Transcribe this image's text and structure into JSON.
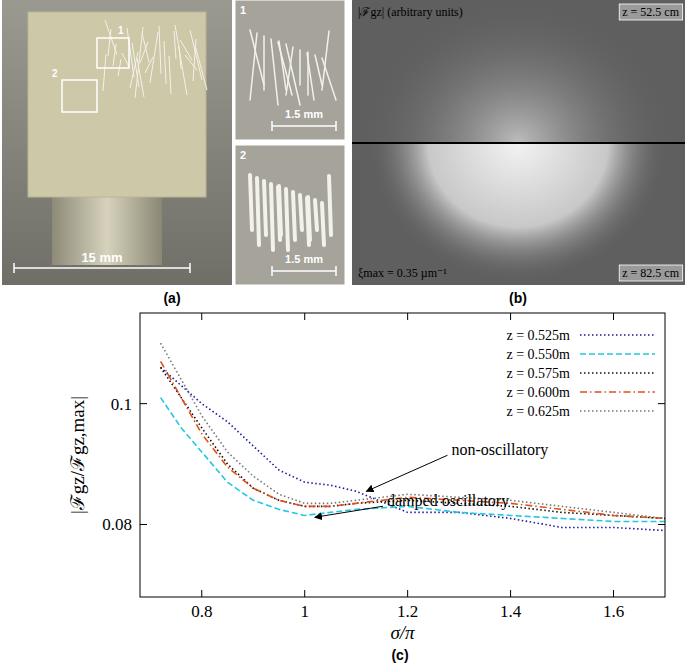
{
  "chart_data": {
    "type": "line",
    "xlabel": "σ/π",
    "ylabel": "|ℱgz/ℱgz,max|",
    "x": [
      0.72,
      0.76,
      0.8,
      0.85,
      0.9,
      0.95,
      1.0,
      1.05,
      1.1,
      1.2,
      1.3,
      1.4,
      1.5,
      1.6,
      1.7
    ],
    "series": [
      {
        "name": "z = 0.525m",
        "color": "#1a1aa0",
        "line_style": "dotted",
        "values": [
          0.106,
          0.103,
          0.1,
          0.097,
          0.093,
          0.089,
          0.087,
          0.0865,
          0.0855,
          0.082,
          0.082,
          0.081,
          0.0795,
          0.0795,
          0.079
        ]
      },
      {
        "name": "z = 0.550m",
        "color": "#22c8e0",
        "line_style": "dashed",
        "values": [
          0.101,
          0.096,
          0.092,
          0.087,
          0.084,
          0.0825,
          0.0815,
          0.082,
          0.0825,
          0.083,
          0.082,
          0.0815,
          0.081,
          0.0805,
          0.0805
        ]
      },
      {
        "name": "z = 0.575m",
        "color": "#111111",
        "line_style": "dotted",
        "values": [
          0.106,
          0.101,
          0.096,
          0.09,
          0.086,
          0.084,
          0.083,
          0.083,
          0.0835,
          0.084,
          0.0835,
          0.083,
          0.082,
          0.0815,
          0.081
        ]
      },
      {
        "name": "z = 0.600m",
        "color": "#e0501a",
        "line_style": "dashdot",
        "values": [
          0.107,
          0.101,
          0.095,
          0.0895,
          0.086,
          0.084,
          0.083,
          0.083,
          0.0835,
          0.0845,
          0.084,
          0.0835,
          0.0825,
          0.0815,
          0.081
        ]
      },
      {
        "name": "z = 0.625m",
        "color": "#777777",
        "line_style": "dotted",
        "values": [
          0.11,
          0.104,
          0.098,
          0.092,
          0.088,
          0.085,
          0.0835,
          0.0835,
          0.084,
          0.085,
          0.0845,
          0.084,
          0.083,
          0.082,
          0.081
        ]
      }
    ],
    "xlim": [
      0.68,
      1.7
    ],
    "ylim": [
      0.068,
      0.115
    ],
    "xticks": [
      0.8,
      1,
      1.2,
      1.4,
      1.6
    ],
    "yticks": [
      0.08,
      0.1
    ],
    "legend": "upper-right",
    "grid": false,
    "annotations": [
      {
        "text": "non-oscillatory",
        "x": 1.12,
        "y": 0.0855
      },
      {
        "text": "damped oscillatory",
        "x": 1.02,
        "y": 0.0812
      }
    ]
  },
  "panel_a": {
    "label": "(a)",
    "scale_bar": "15 mm",
    "boxes": [
      "1",
      "2"
    ],
    "insets": [
      {
        "number": "1",
        "scale_bar": "1.5 mm"
      },
      {
        "number": "2",
        "scale_bar": "1.5 mm"
      }
    ]
  },
  "panel_b": {
    "label": "(b)",
    "title": "|ℱgz| (arbitrary units)",
    "top_label": "z = 52.5 cm",
    "bottom_label": "z = 82.5 cm",
    "xi_label": "ξmax = 0.35 µm⁻¹"
  },
  "panel_c": {
    "label": "(c)"
  }
}
